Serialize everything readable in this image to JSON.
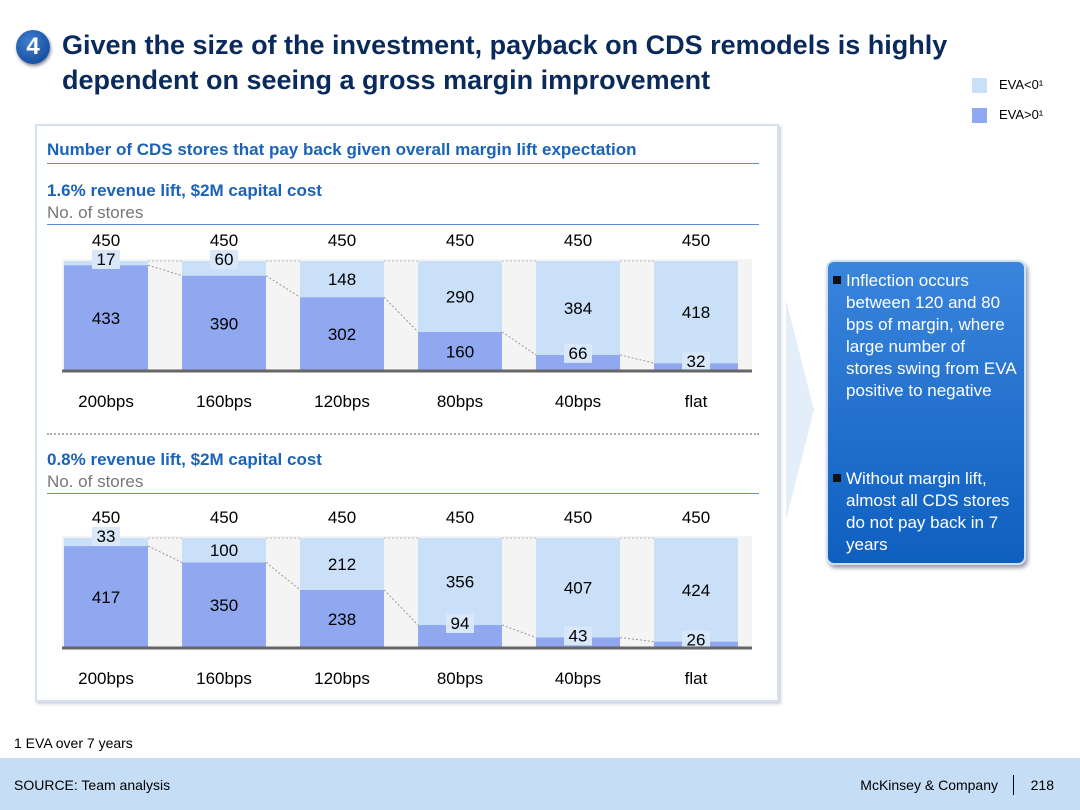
{
  "slide": {
    "number": "4",
    "title": "Given the size of the investment, payback on CDS remodels is highly dependent on seeing a gross margin improvement"
  },
  "legend": [
    {
      "label": "EVA<0¹",
      "color": "#c9e0f8"
    },
    {
      "label": "EVA>0¹",
      "color": "#8fa8f0"
    }
  ],
  "panel": {
    "heading": "Number of CDS stores that pay back given overall margin lift expectation"
  },
  "callout": {
    "bullets": [
      "Inflection occurs between 120 and 80 bps of margin, where large number of stores swing from EVA positive to negative",
      "Without margin lift, almost all CDS stores do not pay back in 7 years"
    ]
  },
  "footnote": "1 EVA over 7 years",
  "footer": {
    "source": "SOURCE: Team analysis",
    "company": "McKinsey & Company",
    "page": "218"
  },
  "chart_data": [
    {
      "type": "bar",
      "stacked": true,
      "title": "1.6% revenue lift, $2M capital cost",
      "ylabel": "No. of stores",
      "categories": [
        "200bps",
        "160bps",
        "120bps",
        "80bps",
        "40bps",
        "flat"
      ],
      "totals": [
        450,
        450,
        450,
        450,
        450,
        450
      ],
      "series": [
        {
          "name": "EVA>0¹",
          "values": [
            433,
            390,
            302,
            160,
            66,
            32
          ]
        },
        {
          "name": "EVA<0¹",
          "values": [
            17,
            60,
            148,
            290,
            384,
            418
          ]
        }
      ]
    },
    {
      "type": "bar",
      "stacked": true,
      "title": "0.8% revenue lift, $2M capital cost",
      "ylabel": "No. of stores",
      "categories": [
        "200bps",
        "160bps",
        "120bps",
        "80bps",
        "40bps",
        "flat"
      ],
      "totals": [
        450,
        450,
        450,
        450,
        450,
        450
      ],
      "series": [
        {
          "name": "EVA>0¹",
          "values": [
            417,
            350,
            238,
            94,
            43,
            26
          ]
        },
        {
          "name": "EVA<0¹",
          "values": [
            33,
            100,
            212,
            356,
            407,
            424
          ]
        }
      ]
    }
  ]
}
